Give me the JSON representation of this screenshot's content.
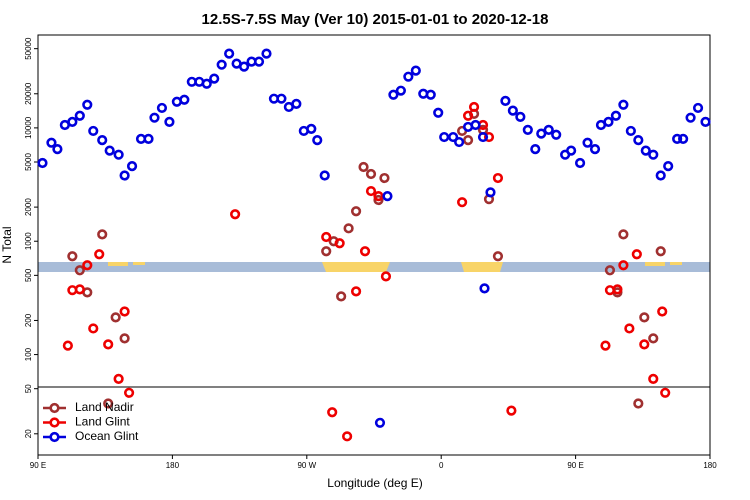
{
  "chart_data": {
    "type": "scatter",
    "title": "12.5S-7.5S May (Ver 10)   2015-01-01 to 2020-12-18",
    "x_label": "Longitude (deg E)",
    "y_label": "N Total",
    "log_y": true,
    "legend": "bottom-left",
    "xlim": [
      90,
      540
    ],
    "ylim": [
      13,
      66000
    ],
    "xticks": [
      {
        "value": 90,
        "label": "90 E"
      },
      180,
      {
        "value": 270,
        "label": "90 W"
      },
      {
        "value": 360,
        "label": "0"
      },
      {
        "value": 450,
        "label": "90 E"
      },
      {
        "value": 540,
        "label": "180"
      }
    ],
    "yticks": [
      20,
      50,
      100,
      200,
      500,
      1000,
      2000,
      5000,
      10000,
      20000,
      50000
    ],
    "series": [
      {
        "name": "Land Nadir",
        "color": "#a03030",
        "x": [
          113,
          118,
          123,
          133,
          137,
          142,
          148,
          283,
          288,
          293,
          298,
          303,
          308,
          313,
          318,
          322,
          374,
          378,
          382,
          388,
          392,
          398,
          473,
          478,
          482,
          492,
          496,
          502,
          507
        ],
        "values": [
          737,
          555,
          354,
          1150,
          37,
          213,
          139,
          816,
          1000,
          326,
          1300,
          1840,
          4520,
          3920,
          2310,
          3610,
          9400,
          7800,
          13300,
          9600,
          2350,
          737,
          555,
          354,
          1150,
          37,
          213,
          139,
          816
        ]
      },
      {
        "name": "Land Glint",
        "color": "#ee0000",
        "x": [
          110,
          113,
          118,
          123,
          127,
          131,
          137,
          144,
          148,
          151,
          222,
          283,
          287,
          292,
          297,
          303,
          309,
          313,
          318,
          323,
          374,
          378,
          382,
          388,
          392,
          398,
          407,
          470,
          473,
          478,
          482,
          486,
          491,
          496,
          502,
          508,
          510
        ],
        "values": [
          120,
          370,
          376,
          614,
          170,
          768,
          123,
          61,
          240,
          46,
          1730,
          1090,
          31,
          960,
          19,
          361,
          816,
          2770,
          2500,
          490,
          2210,
          12800,
          15300,
          10600,
          8300,
          3610,
          32,
          120,
          370,
          376,
          614,
          170,
          768,
          123,
          61,
          240,
          46
        ]
      },
      {
        "name": "Ocean Glint",
        "color": "#0000dd",
        "x": [
          93,
          99,
          103,
          108,
          113,
          118,
          123,
          127,
          133,
          138,
          144,
          148,
          153,
          159,
          164,
          168,
          173,
          178,
          183,
          188,
          193,
          198,
          203,
          208,
          213,
          218,
          223,
          228,
          233,
          238,
          243,
          248,
          253,
          258,
          263,
          268,
          273,
          277,
          282,
          319,
          324,
          328,
          333,
          338,
          343,
          348,
          353,
          358,
          362,
          368,
          372,
          378,
          383,
          388,
          389,
          393,
          403,
          408,
          413,
          418,
          423,
          427,
          432,
          437,
          443,
          447,
          453,
          458,
          463,
          467,
          472,
          477,
          482,
          487,
          492,
          497,
          502,
          507,
          512,
          518,
          522,
          527,
          532,
          537
        ],
        "values": [
          4900,
          7400,
          6500,
          10600,
          11300,
          12800,
          16000,
          9400,
          7800,
          6300,
          5800,
          3800,
          4600,
          8000,
          8000,
          12300,
          15000,
          11300,
          17000,
          17700,
          25500,
          25500,
          24500,
          27200,
          36100,
          45200,
          36900,
          34700,
          38400,
          38400,
          45200,
          18100,
          18100,
          15300,
          16300,
          9400,
          9800,
          7800,
          3800,
          25,
          2500,
          19600,
          21300,
          28300,
          32000,
          20000,
          19600,
          13600,
          8300,
          8300,
          7500,
          10200,
          10600,
          8300,
          384,
          2700,
          17300,
          14200,
          12500,
          9600,
          6500,
          8900,
          9600,
          8700,
          5800,
          6300,
          4900,
          7400,
          6500,
          10600,
          11300,
          12800,
          16000,
          9400,
          7800,
          6300,
          5800,
          3800,
          4600,
          8000,
          8000,
          12300,
          15000,
          11300
        ]
      }
    ]
  }
}
